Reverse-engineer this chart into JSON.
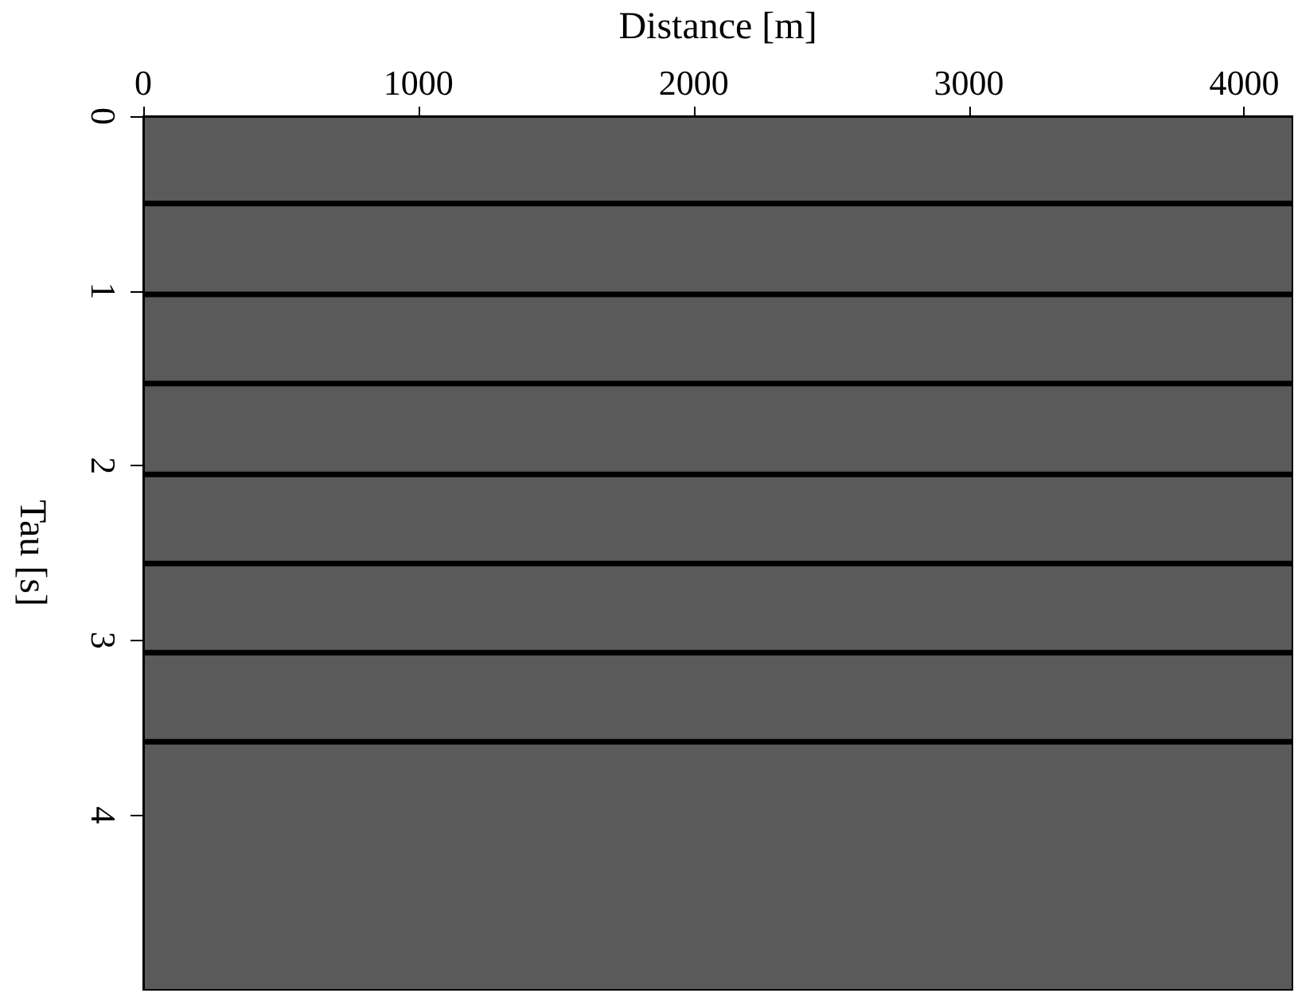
{
  "chart_data": {
    "type": "line",
    "xlabel": "Distance [m]",
    "ylabel": "Tau [s]",
    "x": [
      0,
      4175
    ],
    "xlim": [
      0,
      4175
    ],
    "xticks": [
      0,
      1000,
      2000,
      3000,
      4000
    ],
    "ylim": [
      5,
      0
    ],
    "yticks": [
      0,
      1,
      2,
      3,
      4
    ],
    "marker": "none",
    "line_style": "solid",
    "series": [
      {
        "color": "#000000",
        "values": [
          0.5,
          0.5
        ]
      },
      {
        "color": "#000000",
        "values": [
          1.02,
          1.02
        ]
      },
      {
        "color": "#000000",
        "values": [
          1.53,
          1.53
        ]
      },
      {
        "color": "#000000",
        "values": [
          2.05,
          2.05
        ]
      },
      {
        "color": "#000000",
        "values": [
          2.56,
          2.56
        ]
      },
      {
        "color": "#000000",
        "values": [
          3.07,
          3.07
        ]
      },
      {
        "color": "#000000",
        "values": [
          3.58,
          3.58
        ]
      }
    ]
  }
}
